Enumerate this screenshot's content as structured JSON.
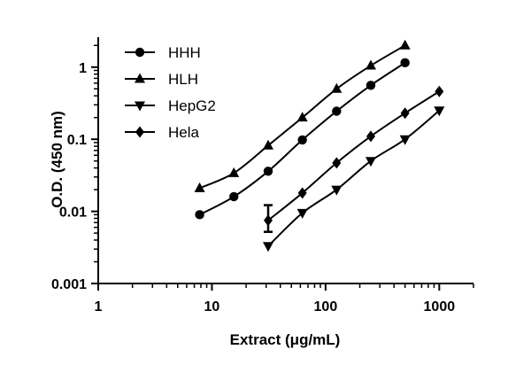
{
  "chart_data": {
    "type": "scatter",
    "xlabel": "Extract (μg/mL)",
    "ylabel": "O.D. (450 nm)",
    "xscale": "log",
    "yscale": "log",
    "xlim": [
      1,
      2000
    ],
    "ylim": [
      0.001,
      2.6
    ],
    "x_ticks": [
      1,
      10,
      100,
      1000
    ],
    "x_tick_labels": [
      "1",
      "10",
      "100",
      "1000"
    ],
    "y_ticks": [
      0.001,
      0.01,
      0.1,
      1
    ],
    "y_tick_labels": [
      "0.001",
      "0.01",
      "0.1",
      "1"
    ],
    "grid": false,
    "legend_position": "top-left",
    "series": [
      {
        "name": "HHH",
        "marker": "circle",
        "x": [
          7.8,
          15.6,
          31.25,
          62.5,
          125,
          250,
          500
        ],
        "y": [
          0.009,
          0.016,
          0.036,
          0.098,
          0.245,
          0.56,
          1.15
        ]
      },
      {
        "name": "HLH",
        "marker": "triangle-up",
        "x": [
          7.8,
          15.6,
          31.25,
          62.5,
          125,
          250,
          500
        ],
        "y": [
          0.021,
          0.034,
          0.082,
          0.2,
          0.5,
          1.05,
          2.0
        ]
      },
      {
        "name": "HepG2",
        "marker": "triangle-down",
        "x": [
          31.25,
          62.5,
          125,
          250,
          500,
          1000
        ],
        "y": [
          0.0033,
          0.0095,
          0.02,
          0.05,
          0.1,
          0.25
        ]
      },
      {
        "name": "Hela",
        "marker": "diamond",
        "x": [
          31.25,
          62.5,
          125,
          250,
          500,
          1000
        ],
        "y": [
          0.0075,
          0.018,
          0.047,
          0.11,
          0.23,
          0.46
        ],
        "error": [
          {
            "x": 31.25,
            "low": 0.0052,
            "high": 0.0122
          }
        ]
      }
    ]
  }
}
